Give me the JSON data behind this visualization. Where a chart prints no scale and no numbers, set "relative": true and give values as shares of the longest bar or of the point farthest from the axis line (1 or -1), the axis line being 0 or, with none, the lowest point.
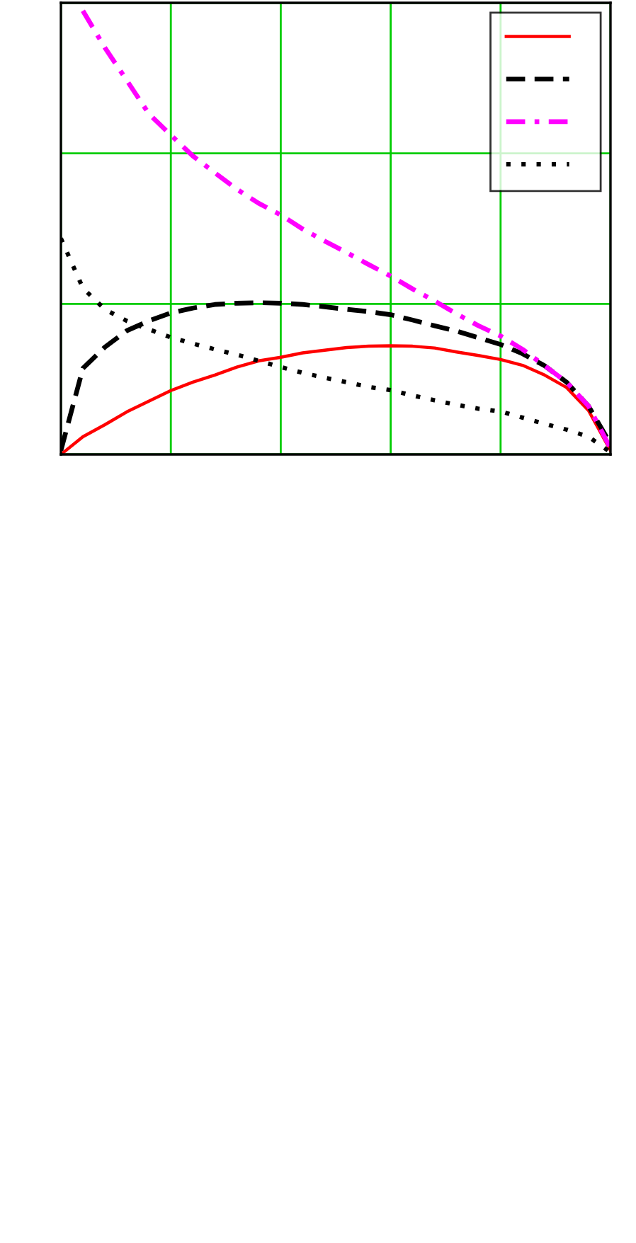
{
  "chart_data": {
    "type": "line",
    "relative": true,
    "grid": true,
    "tick_labels": false,
    "categories": [
      null,
      null,
      null,
      null,
      null,
      null,
      null,
      null,
      null,
      null,
      null,
      null,
      null,
      null,
      null,
      null,
      null,
      null,
      null,
      null,
      null,
      null,
      null,
      null,
      null,
      null
    ],
    "series": [
      {
        "color": "#ff0000",
        "line_style": "solid",
        "values": [
          0,
          0.04,
          0.067,
          0.096,
          0.12,
          0.144,
          0.163,
          0.179,
          0.197,
          0.211,
          0.219,
          0.229,
          0.235,
          0.241,
          0.244,
          0.245,
          0.244,
          0.24,
          0.231,
          0.223,
          0.214,
          0.201,
          0.179,
          0.151,
          0.099,
          0.009
        ]
      },
      {
        "color": "#000000",
        "line_style": "dashed",
        "values": [
          0.009,
          0.194,
          0.242,
          0.279,
          0.301,
          0.319,
          0.33,
          0.338,
          0.341,
          0.342,
          0.341,
          0.338,
          0.333,
          0.327,
          0.322,
          0.315,
          0.303,
          0.29,
          0.278,
          0.263,
          0.248,
          0.227,
          0.2,
          0.163,
          0.109,
          0.024
        ]
      },
      {
        "color": "#ff00ff",
        "line_style": "dashdot",
        "values": [
          null,
          1,
          0.917,
          0.843,
          0.768,
          0.72,
          0.673,
          0.635,
          0.598,
          0.566,
          0.54,
          0.508,
          0.481,
          0.455,
          0.428,
          0.402,
          0.373,
          0.346,
          0.317,
          0.29,
          0.267,
          0.237,
          0.2,
          0.163,
          0.109,
          0.014
        ]
      },
      {
        "color": "#000000",
        "line_style": "dotted",
        "values": [
          0.487,
          0.375,
          0.327,
          0.301,
          0.282,
          0.264,
          0.25,
          0.237,
          0.225,
          0.211,
          0.197,
          0.184,
          0.173,
          0.163,
          0.152,
          0.145,
          0.133,
          0.122,
          0.112,
          0.103,
          0.097,
          0.083,
          0.069,
          0.056,
          0.04,
          0.005
        ]
      }
    ]
  }
}
